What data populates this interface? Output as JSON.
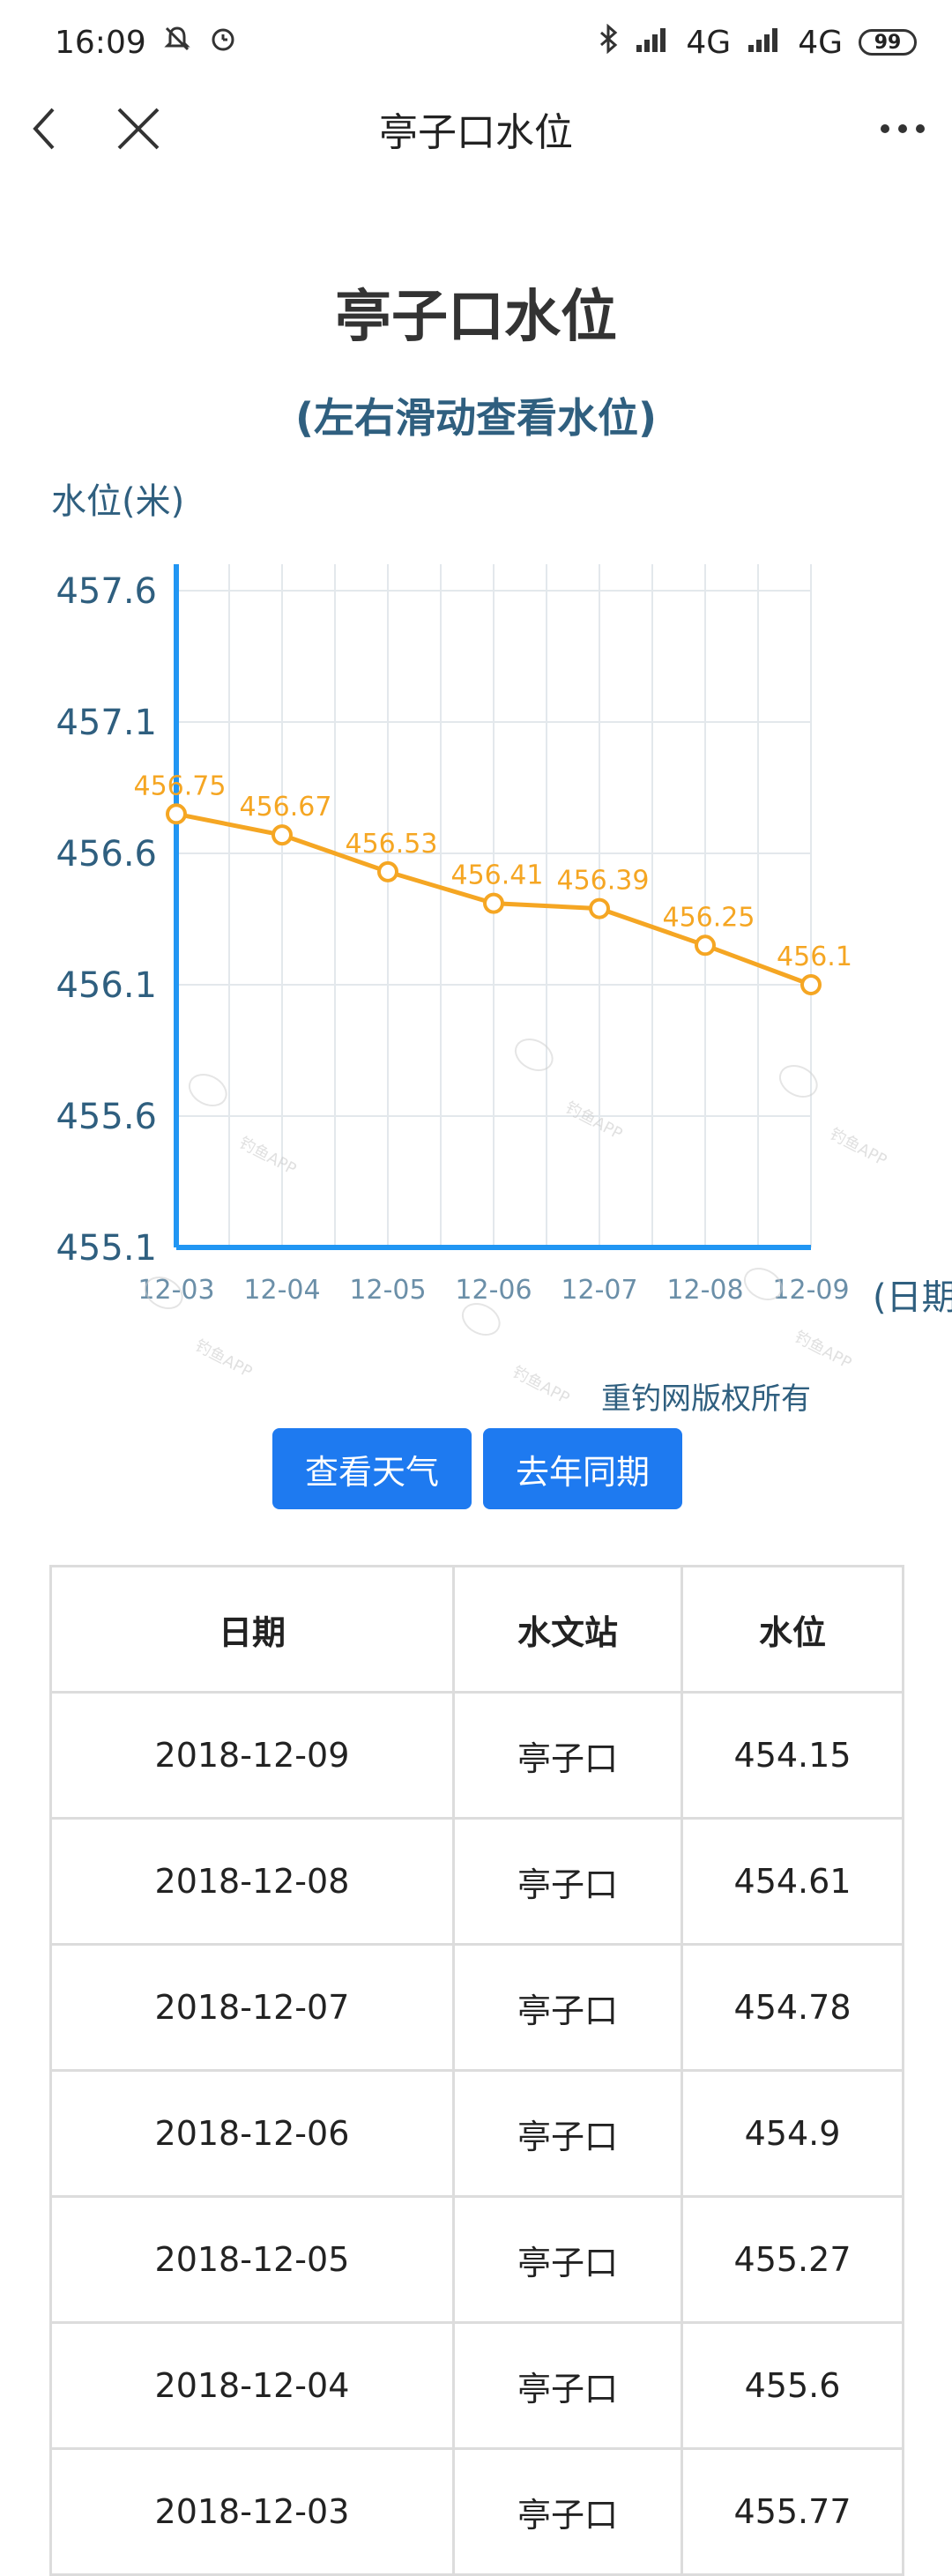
{
  "status_bar": {
    "time": "16:09",
    "network1": "4G",
    "network2": "4G",
    "battery": "99"
  },
  "nav": {
    "title": "亭子口水位"
  },
  "page": {
    "title": "亭子口水位",
    "subtitle": "(左右滑动查看水位)"
  },
  "chart_data": {
    "type": "line",
    "ylabel": "水位(米)",
    "xlabel": "(日期)",
    "x": [
      "12-03",
      "12-04",
      "12-05",
      "12-06",
      "12-07",
      "12-08",
      "12-09"
    ],
    "series": [
      {
        "values": [
          456.75,
          456.67,
          456.53,
          456.41,
          456.39,
          456.25,
          456.1
        ]
      }
    ],
    "value_labels": [
      "456.75",
      "456.67",
      "456.53",
      "456.41",
      "456.39",
      "456.25",
      "456.1"
    ],
    "yticks": [
      "457.6",
      "457.1",
      "456.6",
      "456.1",
      "455.6",
      "455.1"
    ],
    "ylim": [
      455.1,
      457.6
    ],
    "grid": true,
    "copyright": "重钓网版权所有",
    "line_color": "#f5a623",
    "axis_color": "#2196f3"
  },
  "watermark": {
    "text": "钓鱼APP"
  },
  "buttons": {
    "weather": "查看天气",
    "last_year": "去年同期"
  },
  "table": {
    "headers": [
      "日期",
      "水文站",
      "水位"
    ],
    "rows": [
      [
        "2018-12-09",
        "亭子口",
        "454.15"
      ],
      [
        "2018-12-08",
        "亭子口",
        "454.61"
      ],
      [
        "2018-12-07",
        "亭子口",
        "454.78"
      ],
      [
        "2018-12-06",
        "亭子口",
        "454.9"
      ],
      [
        "2018-12-05",
        "亭子口",
        "455.27"
      ],
      [
        "2018-12-04",
        "亭子口",
        "455.6"
      ],
      [
        "2018-12-03",
        "亭子口",
        "455.77"
      ]
    ]
  }
}
